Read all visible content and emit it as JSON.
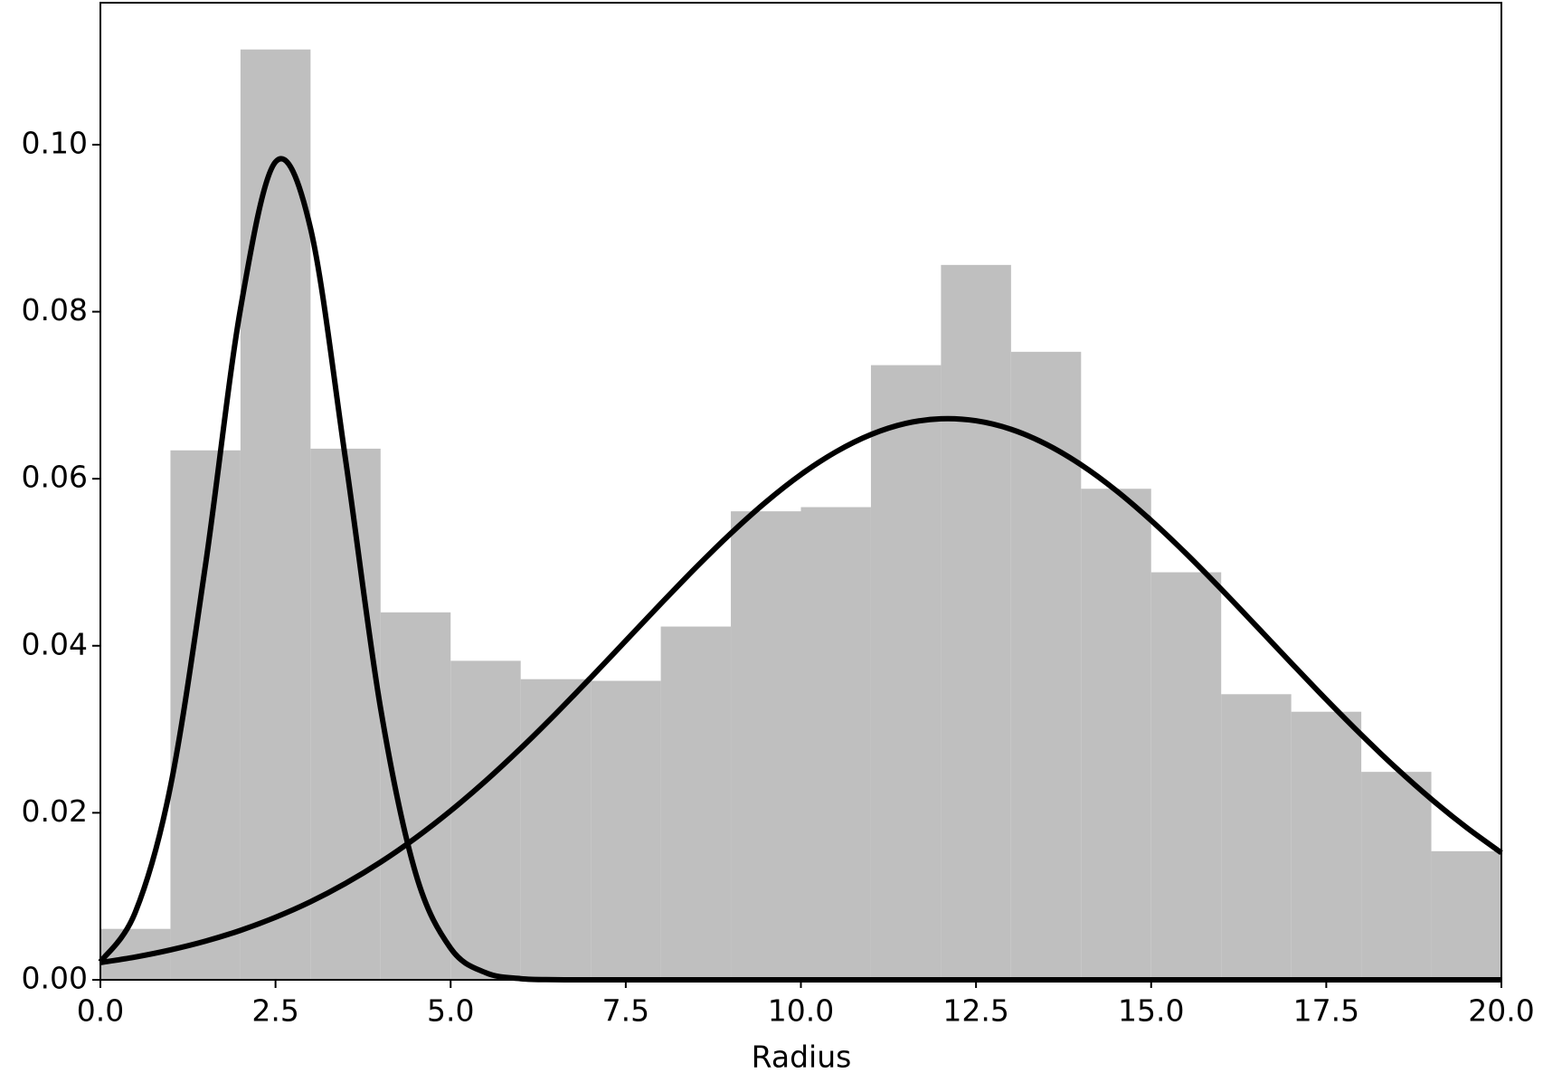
{
  "chart_data": {
    "type": "histogram",
    "xlabel": "Radius",
    "bins": [
      0,
      1,
      2,
      3,
      4,
      5,
      6,
      7,
      8,
      9,
      10,
      11,
      12,
      13,
      14,
      15,
      16,
      17,
      18,
      19,
      20
    ],
    "values": [
      0.0061,
      0.0634,
      0.1114,
      0.0636,
      0.044,
      0.0382,
      0.036,
      0.0358,
      0.0423,
      0.0561,
      0.0566,
      0.0736,
      0.0856,
      0.0752,
      0.0588,
      0.0488,
      0.0342,
      0.0321,
      0.0249,
      0.0154
    ],
    "color": "#bfbfbf",
    "curve_x": [
      0,
      0.5,
      1,
      1.5,
      2,
      2.5,
      3,
      3.5,
      4,
      4.5,
      5,
      5.5,
      6,
      6.5,
      7,
      7.5,
      8,
      8.5,
      9,
      9.5,
      10,
      10.5,
      11,
      11.5,
      12,
      12.5,
      13,
      13.5,
      14,
      14.5,
      15,
      15.5,
      16,
      16.5,
      17,
      17.5,
      18,
      18.5,
      19,
      19.5,
      20
    ],
    "curves": [
      {
        "color": "#000000",
        "values": [
          0.00215,
          0.00812,
          0.02314,
          0.04966,
          0.08035,
          0.09794,
          0.08998,
          0.06228,
          0.0325,
          0.01277,
          0.00378,
          0.00085,
          0.00014,
          2e-05,
          0,
          0,
          0,
          0,
          0,
          0,
          0,
          0,
          0,
          0,
          0,
          0,
          0,
          0,
          0,
          0,
          0,
          0,
          0,
          0,
          0,
          0,
          0,
          0,
          0,
          0,
          0
        ]
      },
      {
        "color": "#000000",
        "values": [
          0.00206,
          0.00273,
          0.00358,
          0.00463,
          0.00592,
          0.00749,
          0.00935,
          0.01155,
          0.01409,
          0.01699,
          0.02024,
          0.02382,
          0.02771,
          0.03185,
          0.03618,
          0.0406,
          0.04503,
          0.04936,
          0.05346,
          0.05721,
          0.0605,
          0.06322,
          0.06529,
          0.06663,
          0.06718,
          0.06694,
          0.06592,
          0.06414,
          0.06167,
          0.05859,
          0.055,
          0.05103,
          0.04678,
          0.04238,
          0.03794,
          0.03356,
          0.02934,
          0.02534,
          0.02163,
          0.01825,
          0.01521
        ]
      }
    ],
    "xlim": [
      0,
      20
    ],
    "xticks": [
      {
        "value": 0,
        "label": "0.0"
      },
      2.5,
      {
        "value": 5,
        "label": "5.0"
      },
      7.5,
      {
        "value": 10,
        "label": "10.0"
      },
      12.5,
      {
        "value": 15,
        "label": "15.0"
      },
      17.5,
      {
        "value": 20,
        "label": "20.0"
      }
    ],
    "ylim": [
      0,
      0.117
    ],
    "yticks": [
      {
        "value": 0,
        "label": "0.00"
      },
      {
        "value": 0.02,
        "label": "0.02"
      },
      {
        "value": 0.04,
        "label": "0.04"
      },
      {
        "value": 0.06,
        "label": "0.06"
      },
      {
        "value": 0.08,
        "label": "0.08"
      },
      {
        "value": 0.1,
        "label": "0.10"
      }
    ]
  }
}
